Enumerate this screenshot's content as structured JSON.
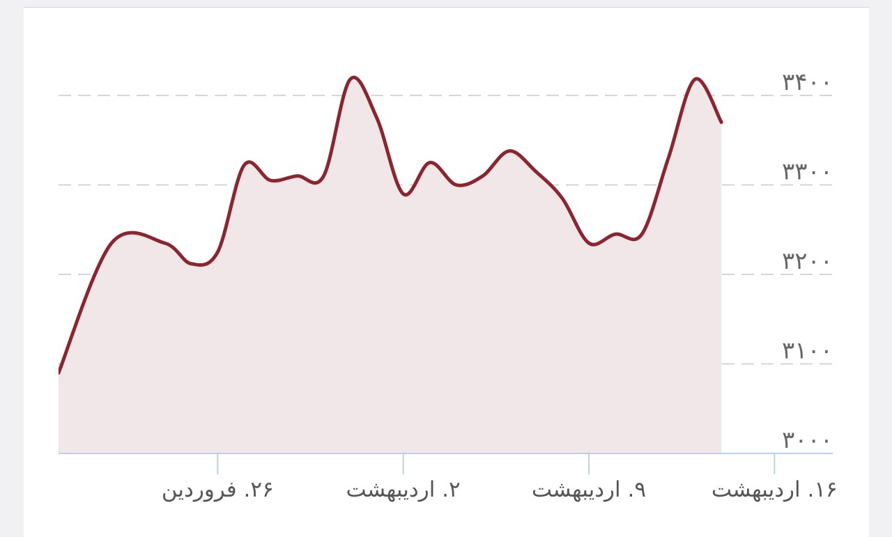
{
  "chart_data": {
    "type": "area",
    "title": "",
    "xlabel": "",
    "ylabel": "",
    "ylim": [
      3000,
      3400
    ],
    "yticks": [
      "۳۰۰۰",
      "۳۱۰۰",
      "۳۲۰۰",
      "۳۳۰۰",
      "۳۴۰۰"
    ],
    "ytick_values": [
      3000,
      3100,
      3200,
      3300,
      3400
    ],
    "xticks": [
      "۲۶. فروردین",
      "۲. اردیبهشت",
      "۹. اردیبهشت",
      "۱۶. اردیبهشت"
    ],
    "xtick_positions": [
      6,
      13,
      20,
      27
    ],
    "grid": true,
    "line_color": "#8b2630",
    "fill_color": "#f2e7e8",
    "series": [
      {
        "x": [
          0,
          2,
          4,
          5,
          6,
          7,
          8,
          9,
          10,
          11,
          12,
          13,
          14,
          15,
          16,
          17,
          18,
          19,
          20,
          21,
          22,
          23,
          24,
          25,
          26,
          27,
          28,
          29
        ],
        "values": [
          3090,
          3235,
          3235,
          3212,
          3225,
          3322,
          3305,
          3310,
          3310,
          3418,
          3375,
          3290,
          3325,
          3300,
          3310,
          3338,
          3315,
          3285,
          3235,
          3245,
          3245,
          3330,
          3418,
          3370,
          null,
          null,
          null,
          null
        ]
      }
    ]
  }
}
